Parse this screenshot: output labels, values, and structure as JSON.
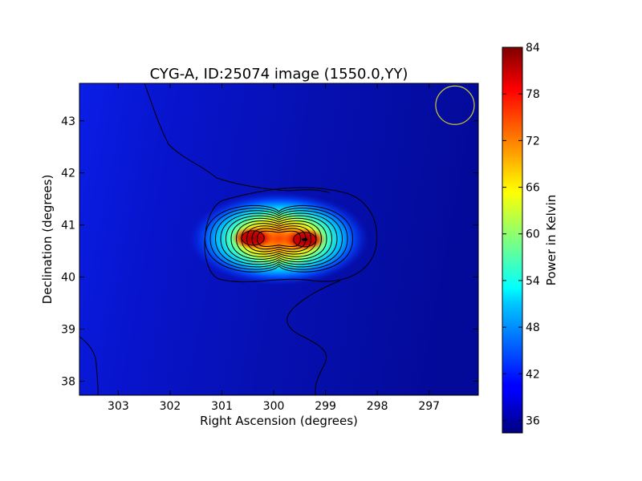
{
  "chart_data": {
    "type": "heatmap",
    "title": "CYG-A, ID:25074 image (1550.0,YY)",
    "xlabel": "Right Ascension (degrees)",
    "ylabel": "Declination (degrees)",
    "xlim": [
      303.75,
      296.05
    ],
    "ylim": [
      37.73,
      43.72
    ],
    "x_ticks": [
      303,
      302,
      301,
      300,
      299,
      298,
      297
    ],
    "y_ticks": [
      38,
      39,
      40,
      41,
      42,
      43
    ],
    "colorbar": {
      "label": "Power in Kelvin",
      "colormap": "jet",
      "range": [
        34.4,
        84
      ],
      "ticks": [
        36,
        42,
        48,
        54,
        60,
        66,
        72,
        78,
        84
      ]
    },
    "sources": [
      {
        "ra": 300.4,
        "dec": 40.75,
        "peak_kelvin": 84
      },
      {
        "ra": 299.4,
        "dec": 40.72,
        "peak_kelvin": 80
      }
    ],
    "beam_marker": {
      "ra": 296.5,
      "dec": 43.3,
      "color": "#cccc33"
    },
    "contours": true,
    "grid": false
  }
}
